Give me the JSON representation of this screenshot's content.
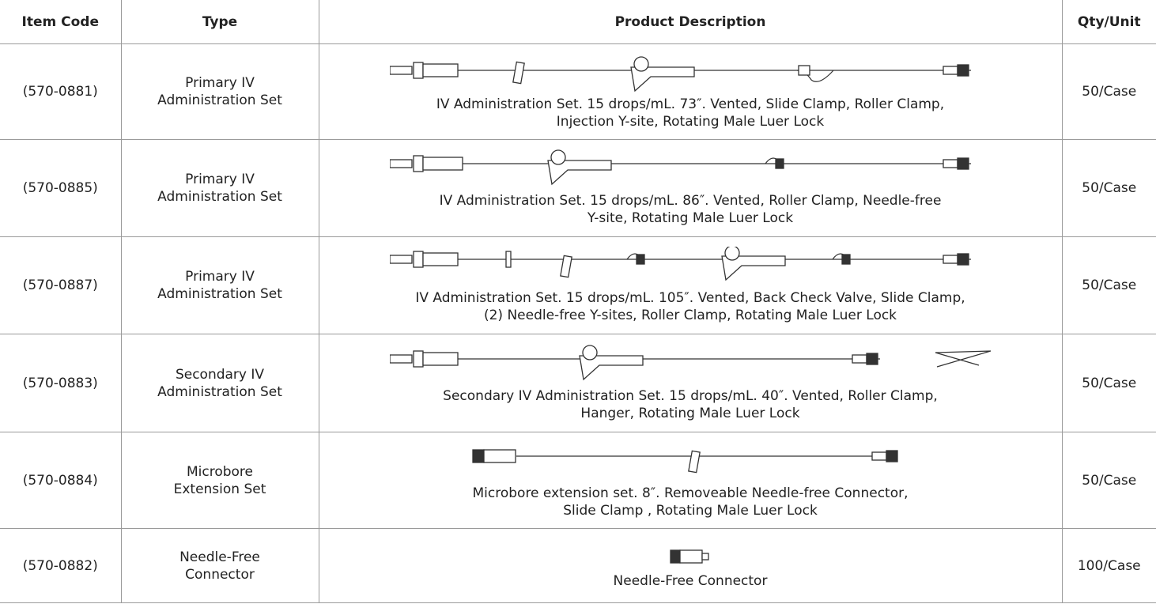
{
  "table": {
    "header": [
      "Item Code",
      "Type",
      "Product Description",
      "Qty/Unit"
    ],
    "rows": [
      {
        "code": "(570-0881)",
        "type": [
          "Primary IV",
          "Administration Set"
        ],
        "description": [
          "IV Administration Set. 15 drops/mL. 73″. Vented, Slide Clamp, Roller Clamp,",
          "Injection Y-site, Rotating Male Luer Lock"
        ],
        "qty": "50/Case"
      },
      {
        "code": "(570-0885)",
        "type": [
          "Primary IV",
          "Administration Set"
        ],
        "description": [
          "IV Administration Set. 15 drops/mL. 86″. Vented, Roller Clamp, Needle-free",
          "Y-site, Rotating Male Luer Lock"
        ],
        "qty": "50/Case"
      },
      {
        "code": "(570-0887)",
        "type": [
          "Primary IV",
          "Administration Set"
        ],
        "description": [
          "IV Administration Set. 15 drops/mL. 105″. Vented, Back Check Valve, Slide Clamp,",
          "(2) Needle-free Y-sites, Roller Clamp, Rotating Male Luer Lock"
        ],
        "qty": "50/Case"
      },
      {
        "code": "(570-0883)",
        "type": [
          "Secondary IV",
          "Administration Set"
        ],
        "description": [
          "Secondary IV Administration Set. 15 drops/mL. 40″. Vented, Roller Clamp,",
          "Hanger, Rotating Male Luer Lock"
        ],
        "qty": "50/Case"
      },
      {
        "code": "(570-0884)",
        "type": [
          "Microbore",
          "Extension Set"
        ],
        "description": [
          "Microbore extension set. 8″. Removeable Needle-free Connector,",
          "Slide Clamp , Rotating Male Luer Lock"
        ],
        "qty": "50/Case"
      },
      {
        "code": "(570-0882)",
        "type": [
          "Needle-Free",
          "Connector"
        ],
        "description": [
          "Needle-Free Connector"
        ],
        "qty": "100/Case"
      }
    ]
  }
}
